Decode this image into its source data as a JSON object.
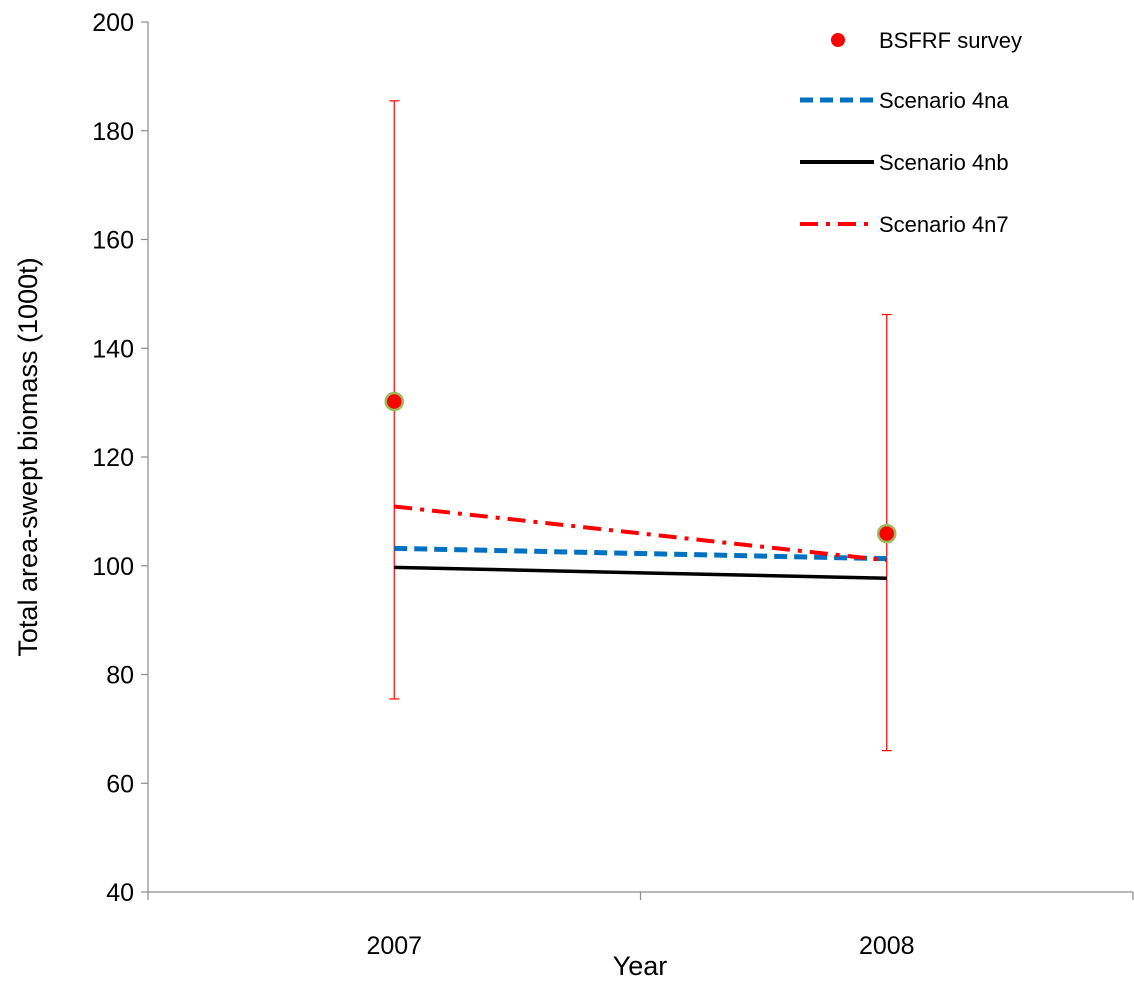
{
  "chart_data": {
    "type": "line",
    "xlabel": "Year",
    "ylabel": "Total area-swept biomass (1000t)",
    "categories": [
      "2007",
      "2008"
    ],
    "ylim": [
      40,
      200
    ],
    "yticks": [
      40,
      60,
      80,
      100,
      120,
      140,
      160,
      180,
      200
    ],
    "grid": false,
    "legend_position": "top-right",
    "points_series": {
      "name": "BSFRF survey",
      "values": [
        130.2,
        105.9
      ],
      "error_low": [
        75.5,
        66.0
      ],
      "error_high": [
        185.5,
        146.2
      ],
      "color": "#ff0000",
      "edge_color": "#9bbb59"
    },
    "series": [
      {
        "name": "Scenario 4na",
        "values": [
          103.2,
          101.3
        ],
        "color": "#0070c0",
        "style": "dashed"
      },
      {
        "name": "Scenario 4nb",
        "values": [
          99.7,
          97.7
        ],
        "color": "#000000",
        "style": "solid"
      },
      {
        "name": "Scenario 4n7",
        "values": [
          110.9,
          101.0
        ],
        "color": "#ff0000",
        "style": "dash-dot"
      }
    ]
  }
}
